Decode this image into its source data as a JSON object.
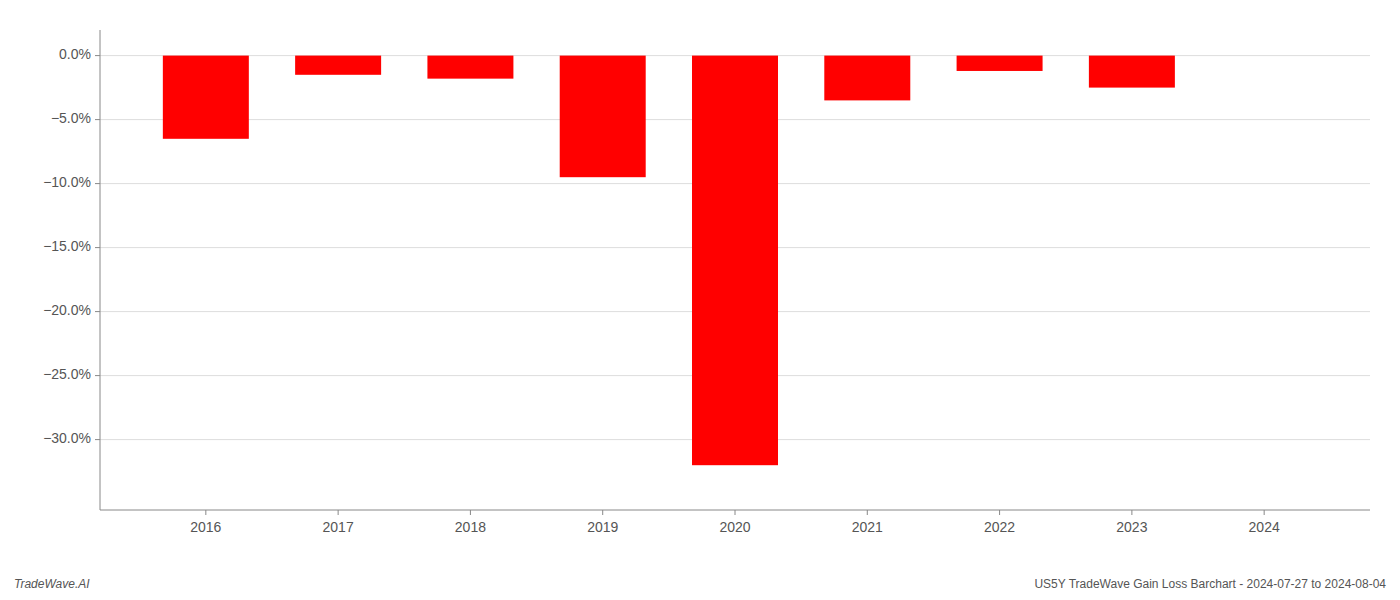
{
  "chart_data": {
    "type": "bar",
    "title": "US5Y TradeWave Gain Loss Barchart - 2024-07-27 to 2024-08-04",
    "annotations": [
      "TradeWave.AI"
    ],
    "x": [
      2016,
      2017,
      2018,
      2019,
      2020,
      2021,
      2022,
      2023
    ],
    "values": [
      -6.5,
      -1.5,
      -1.8,
      -9.5,
      -32.0,
      -3.5,
      -1.2,
      -2.5
    ],
    "color": "#ff0000",
    "xlim": [
      2015.2,
      2024.8
    ],
    "xticks": [
      2016,
      2017,
      2018,
      2019,
      2020,
      2021,
      2022,
      2023,
      2024
    ],
    "ylim": [
      -35.5,
      2.0
    ],
    "yticks": [
      {
        "value": 0.0,
        "label": "0.0%"
      },
      {
        "value": -5.0,
        "label": "−5.0%"
      },
      {
        "value": -10.0,
        "label": "−10.0%"
      },
      {
        "value": -15.0,
        "label": "−15.0%"
      },
      {
        "value": -20.0,
        "label": "−20.0%"
      },
      {
        "value": -25.0,
        "label": "−25.0%"
      },
      {
        "value": -30.0,
        "label": "−30.0%"
      }
    ],
    "grid": true
  }
}
